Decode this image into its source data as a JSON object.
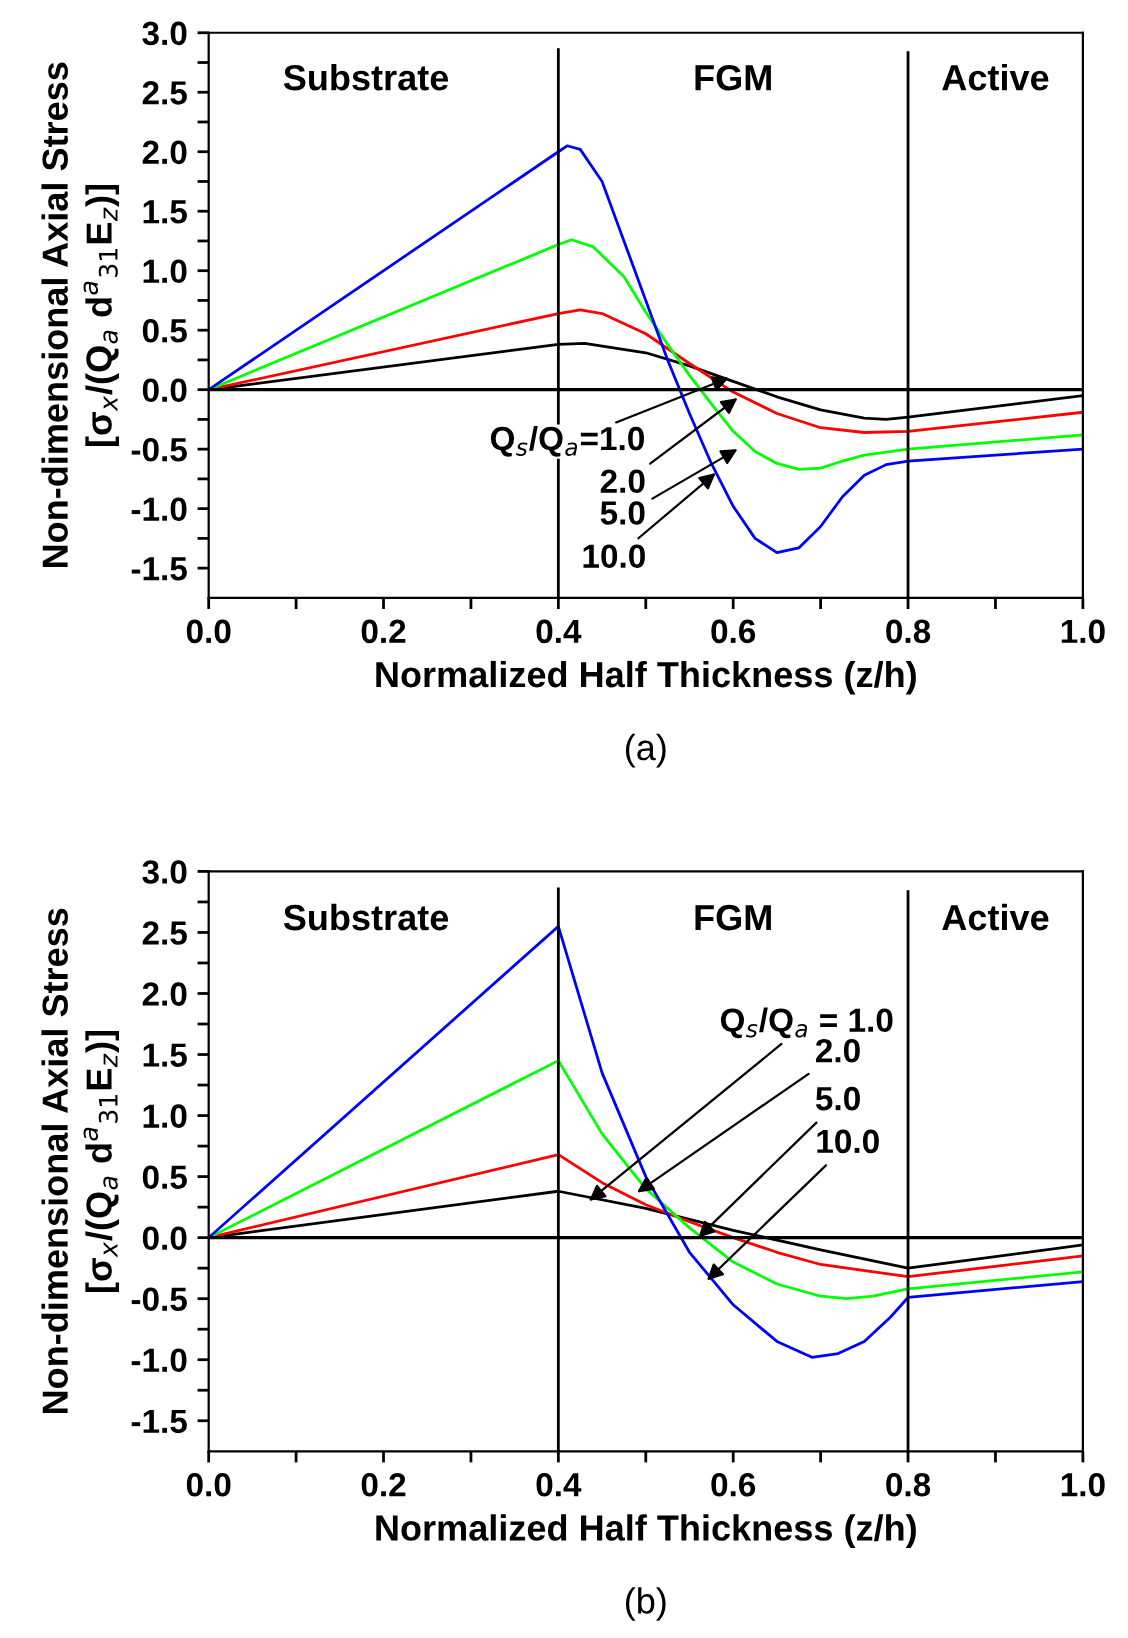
{
  "chart_data": [
    {
      "type": "line",
      "xlabel": "Normalized Half Thickness (z/h)",
      "ylabel": "Non-dimensional Axial Stress\n[σ$_{x}$/(Q$_{a}$ d$^{a}$$_{31}$E$_{z}$)]",
      "xlim": [
        0.0,
        1.0
      ],
      "ylim": [
        -1.75,
        3.0
      ],
      "xticks": [
        {
          "value": 0,
          "label": "0.0"
        },
        {
          "value": 0.1,
          "label": null
        },
        0.2,
        {
          "value": 0.3,
          "label": null
        },
        0.4,
        {
          "value": 0.5,
          "label": null
        },
        0.6,
        {
          "value": 0.7,
          "label": null
        },
        0.8,
        {
          "value": 0.9,
          "label": null
        },
        {
          "value": 1,
          "label": "1.0"
        }
      ],
      "yticks": [
        -1.5,
        {
          "value": -1.25,
          "label": null
        },
        {
          "value": -1,
          "label": "-1.0"
        },
        {
          "value": -0.75,
          "label": null
        },
        -0.5,
        {
          "value": -0.25,
          "label": null
        },
        {
          "value": 0,
          "label": "0.0"
        },
        {
          "value": 0.25,
          "label": null
        },
        0.5,
        {
          "value": 0.75,
          "label": null
        },
        {
          "value": 1,
          "label": "1.0"
        },
        {
          "value": 1.25,
          "label": null
        },
        1.5,
        {
          "value": 1.75,
          "label": null
        },
        {
          "value": 2,
          "label": "2.0"
        },
        {
          "value": 2.25,
          "label": null
        },
        2.5,
        {
          "value": 2.75,
          "label": null
        },
        {
          "value": 3,
          "label": "3.0"
        }
      ],
      "grid": false,
      "legend": false,
      "marker": "none",
      "line_style": "solid",
      "series": [
        {
          "color": "#000000",
          "x": [
            0.0,
            0.4,
            0.43,
            0.5,
            0.55,
            0.6,
            0.65,
            0.7,
            0.75,
            0.775,
            0.8,
            1.0
          ],
          "values": [
            0.0,
            0.38,
            0.39,
            0.31,
            0.2,
            0.07,
            -0.06,
            -0.17,
            -0.24,
            -0.25,
            -0.23,
            -0.05
          ]
        },
        {
          "color": "#ff0000",
          "x": [
            0.0,
            0.4,
            0.425,
            0.45,
            0.5,
            0.55,
            0.6,
            0.65,
            0.7,
            0.75,
            0.8,
            1.0
          ],
          "values": [
            0.0,
            0.64,
            0.67,
            0.64,
            0.47,
            0.22,
            -0.02,
            -0.2,
            -0.32,
            -0.36,
            -0.35,
            -0.19
          ]
        },
        {
          "color": "#00ff00",
          "x": [
            0.0,
            0.4,
            0.415,
            0.44,
            0.475,
            0.5,
            0.525,
            0.55,
            0.575,
            0.6,
            0.625,
            0.65,
            0.675,
            0.7,
            0.725,
            0.75,
            0.8,
            1.0
          ],
          "values": [
            0.0,
            1.22,
            1.26,
            1.2,
            0.95,
            0.65,
            0.38,
            0.12,
            -0.12,
            -0.35,
            -0.52,
            -0.62,
            -0.67,
            -0.66,
            -0.6,
            -0.55,
            -0.5,
            -0.38
          ]
        },
        {
          "color": "#0000ff",
          "x": [
            0.0,
            0.4,
            0.41,
            0.425,
            0.45,
            0.475,
            0.5,
            0.525,
            0.55,
            0.575,
            0.6,
            0.625,
            0.65,
            0.675,
            0.7,
            0.725,
            0.75,
            0.775,
            0.8,
            0.9,
            1.0
          ],
          "values": [
            0.0,
            2.0,
            2.05,
            2.02,
            1.75,
            1.25,
            0.75,
            0.25,
            -0.2,
            -0.62,
            -0.98,
            -1.25,
            -1.37,
            -1.33,
            -1.15,
            -0.9,
            -0.72,
            -0.63,
            -0.6,
            -0.55,
            -0.5
          ]
        }
      ],
      "ref_lines": [
        {
          "axis": "x",
          "value": 0.4,
          "color": "#000000"
        },
        {
          "axis": "x",
          "value": 0.8,
          "color": "#000000"
        },
        {
          "axis": "y",
          "value": 0.0,
          "color": "#000000"
        }
      ],
      "annotations": [
        "Substrate",
        "FGM",
        "Active",
        {
          "text": "Q$_{s}$/Q$_{a}$=1.0",
          "x": 0.595,
          "y": 0.1
        },
        {
          "text": "2.0",
          "x": 0.605,
          "y": -0.07
        },
        {
          "text": "5.0",
          "x": 0.605,
          "y": -0.5
        },
        {
          "text": "10.0",
          "x": 0.58,
          "y": -0.7
        },
        "(a)"
      ]
    },
    {
      "type": "line",
      "xlabel": "Normalized Half Thickness (z/h)",
      "ylabel": "Non-dimensional Axial Stress\n[σ$_{x}$/(Q$_{a}$ d$^{a}$$_{31}$E$_{z}$)]",
      "xlim": [
        0.0,
        1.0
      ],
      "ylim": [
        -1.75,
        3.0
      ],
      "xticks": [
        {
          "value": 0,
          "label": "0.0"
        },
        {
          "value": 0.1,
          "label": null
        },
        0.2,
        {
          "value": 0.3,
          "label": null
        },
        0.4,
        {
          "value": 0.5,
          "label": null
        },
        0.6,
        {
          "value": 0.7,
          "label": null
        },
        0.8,
        {
          "value": 0.9,
          "label": null
        },
        {
          "value": 1,
          "label": "1.0"
        }
      ],
      "yticks": [
        -1.5,
        {
          "value": -1.25,
          "label": null
        },
        {
          "value": -1,
          "label": "-1.0"
        },
        {
          "value": -0.75,
          "label": null
        },
        -0.5,
        {
          "value": -0.25,
          "label": null
        },
        {
          "value": 0,
          "label": "0.0"
        },
        {
          "value": 0.25,
          "label": null
        },
        0.5,
        {
          "value": 0.75,
          "label": null
        },
        {
          "value": 1,
          "label": "1.0"
        },
        {
          "value": 1.25,
          "label": null
        },
        1.5,
        {
          "value": 1.75,
          "label": null
        },
        {
          "value": 2,
          "label": "2.0"
        },
        {
          "value": 2.25,
          "label": null
        },
        2.5,
        {
          "value": 2.75,
          "label": null
        },
        {
          "value": 3,
          "label": "3.0"
        }
      ],
      "grid": false,
      "legend": false,
      "marker": "none",
      "line_style": "solid",
      "series": [
        {
          "color": "#000000",
          "x": [
            0.0,
            0.4,
            0.5,
            0.6,
            0.7,
            0.8,
            1.0
          ],
          "values": [
            0.0,
            0.38,
            0.24,
            0.06,
            -0.1,
            -0.25,
            -0.06
          ]
        },
        {
          "color": "#ff0000",
          "x": [
            0.0,
            0.4,
            0.45,
            0.5,
            0.55,
            0.6,
            0.65,
            0.7,
            0.8,
            1.0
          ],
          "values": [
            0.0,
            0.68,
            0.45,
            0.27,
            0.13,
            0.0,
            -0.12,
            -0.22,
            -0.32,
            -0.15
          ]
        },
        {
          "color": "#00ff00",
          "x": [
            0.0,
            0.4,
            0.45,
            0.5,
            0.55,
            0.6,
            0.65,
            0.7,
            0.73,
            0.76,
            0.8,
            1.0
          ],
          "values": [
            0.0,
            1.45,
            0.85,
            0.4,
            0.08,
            -0.2,
            -0.38,
            -0.48,
            -0.5,
            -0.48,
            -0.42,
            -0.28
          ]
        },
        {
          "color": "#0000ff",
          "x": [
            0.0,
            0.4,
            0.45,
            0.5,
            0.55,
            0.6,
            0.65,
            0.69,
            0.72,
            0.75,
            0.78,
            0.8,
            1.0
          ],
          "values": [
            0.0,
            2.55,
            1.35,
            0.5,
            -0.12,
            -0.55,
            -0.85,
            -0.98,
            -0.95,
            -0.85,
            -0.65,
            -0.49,
            -0.36
          ]
        }
      ],
      "ref_lines": [
        {
          "axis": "x",
          "value": 0.4,
          "color": "#000000"
        },
        {
          "axis": "x",
          "value": 0.8,
          "color": "#000000"
        },
        {
          "axis": "y",
          "value": 0.0,
          "color": "#000000"
        }
      ],
      "annotations": [
        "Substrate",
        "FGM",
        "Active",
        {
          "text": "Q$_{s}$/Q$_{a}$ = 1.0",
          "x": 0.435,
          "y": 0.3
        },
        {
          "text": "2.0",
          "x": 0.49,
          "y": 0.37
        },
        {
          "text": "5.0",
          "x": 0.56,
          "y": 0.0
        },
        {
          "text": "10.0",
          "x": 0.57,
          "y": -0.35
        },
        "(b)"
      ]
    }
  ]
}
